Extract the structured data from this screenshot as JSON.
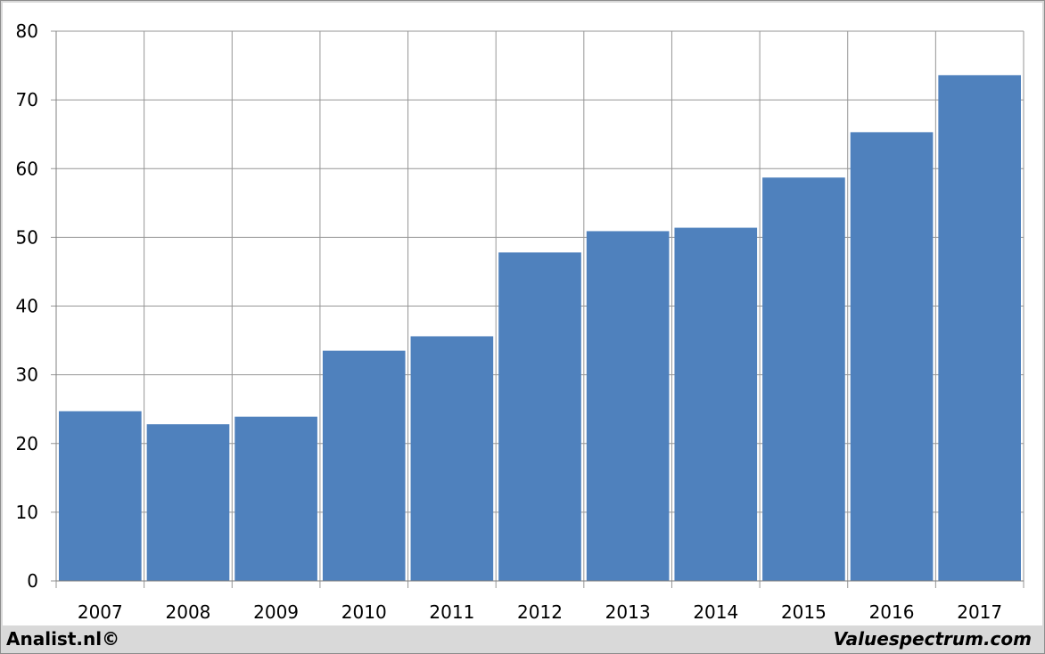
{
  "chart_data": {
    "type": "bar",
    "categories": [
      "2007",
      "2008",
      "2009",
      "2010",
      "2011",
      "2012",
      "2013",
      "2014",
      "2015",
      "2016",
      "2017"
    ],
    "values": [
      24.7,
      22.8,
      23.9,
      33.5,
      35.6,
      47.8,
      50.9,
      51.4,
      58.7,
      65.3,
      73.6
    ],
    "ylim": [
      0,
      80
    ],
    "yticks": [
      "0",
      "10",
      "20",
      "30",
      "40",
      "50",
      "60",
      "70",
      "80"
    ],
    "grid": true,
    "colors": {
      "bar": "#4f81bd",
      "grid": "#969696",
      "background": "#ffffff"
    }
  },
  "footer": {
    "left": "Analist.nl©",
    "right": "Valuespectrum.com"
  }
}
